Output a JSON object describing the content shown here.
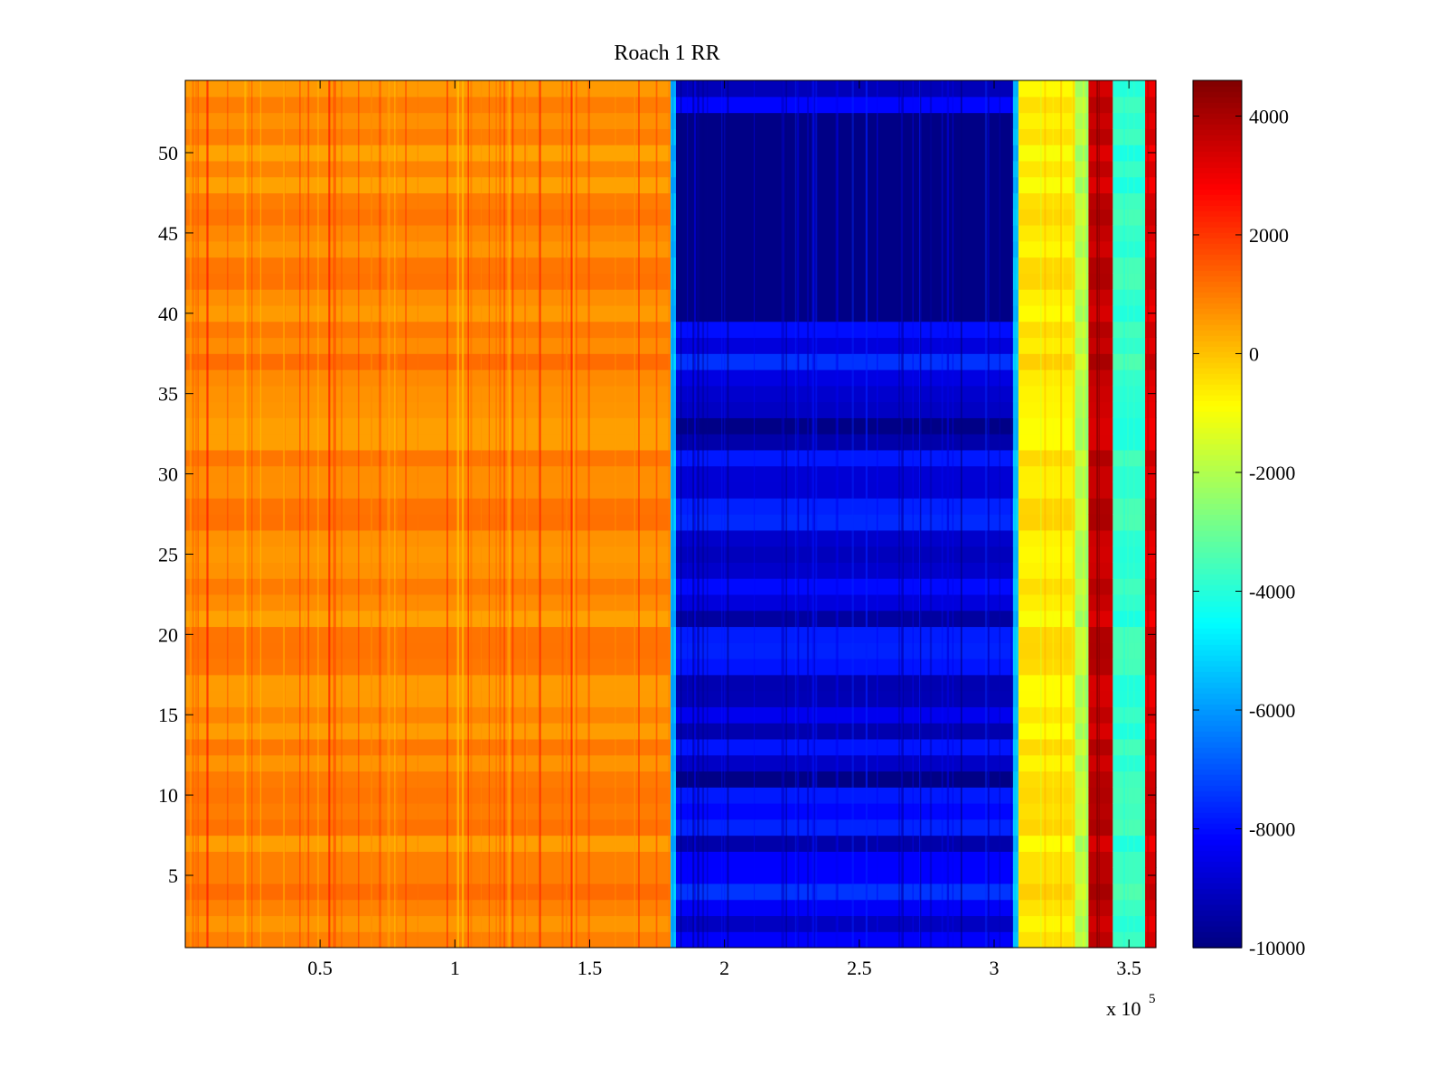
{
  "chart_data": {
    "type": "heatmap",
    "title": "Roach 1 RR",
    "xlabel": "",
    "ylabel": "",
    "x_multiplier_label": "x 10",
    "x_multiplier_exponent": "5",
    "xlim": [
      0,
      3.6
    ],
    "ylim": [
      0.5,
      54.5
    ],
    "x_ticks": [
      0.5,
      1,
      1.5,
      2,
      2.5,
      3,
      3.5
    ],
    "x_tick_labels": [
      "0.5",
      "1",
      "1.5",
      "2",
      "2.5",
      "3",
      "3.5"
    ],
    "y_ticks": [
      5,
      10,
      15,
      20,
      25,
      30,
      35,
      40,
      45,
      50
    ],
    "y_tick_labels": [
      "5",
      "10",
      "15",
      "20",
      "25",
      "30",
      "35",
      "40",
      "45",
      "50"
    ],
    "rows": 54,
    "colorbar": {
      "colormap": "jet",
      "clim": [
        -10000,
        4600
      ],
      "ticks": [
        4000,
        2000,
        0,
        -2000,
        -4000,
        -6000,
        -8000,
        -10000
      ],
      "tick_labels": [
        "4000",
        "2000",
        "0",
        "-2000",
        "-4000",
        "-6000",
        "-8000",
        "-10000"
      ]
    },
    "regions": [
      {
        "x_start": 0.0,
        "x_end": 1.8,
        "value": 800
      },
      {
        "x_start": 1.8,
        "x_end": 1.82,
        "value": -5500
      },
      {
        "x_start": 1.82,
        "x_end": 3.07,
        "value": -9200
      },
      {
        "x_start": 3.07,
        "x_end": 3.09,
        "value": -5500
      },
      {
        "x_start": 3.09,
        "x_end": 3.3,
        "value": -600
      },
      {
        "x_start": 3.3,
        "x_end": 3.35,
        "value": -2000
      },
      {
        "x_start": 3.35,
        "x_end": 3.44,
        "value": 3600
      },
      {
        "x_start": 3.44,
        "x_end": 3.56,
        "value": -3800
      },
      {
        "x_start": 3.56,
        "x_end": 3.6,
        "value": 3200
      }
    ],
    "dark_rows_in_low_band": [
      11,
      33,
      40,
      41,
      42,
      43,
      44,
      45,
      46,
      47,
      48,
      49,
      50,
      51,
      52
    ]
  }
}
